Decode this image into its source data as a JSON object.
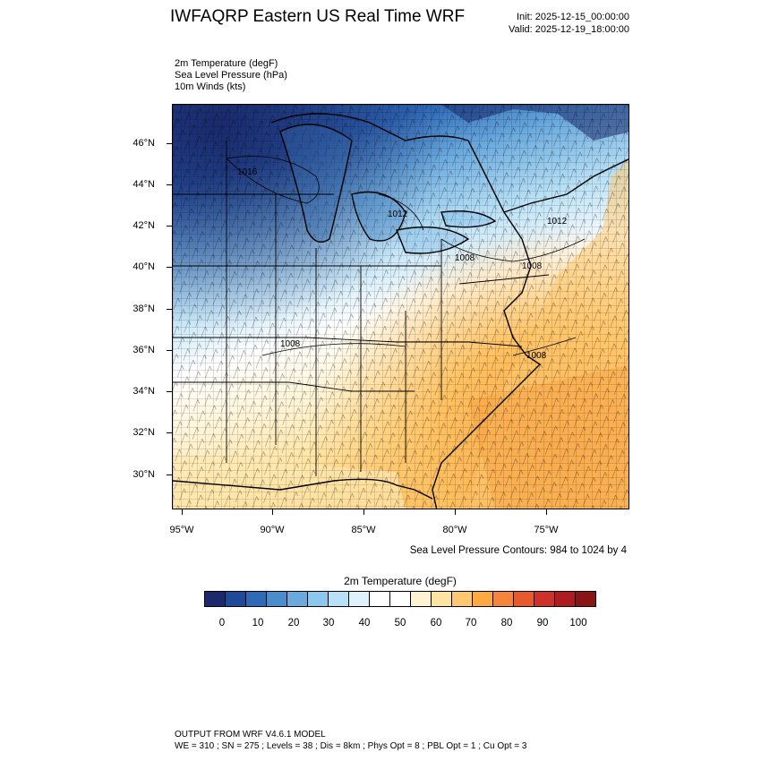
{
  "header": {
    "title": "IWFAQRP Eastern US Real Time WRF",
    "init": "Init: 2025-12-15_00:00:00",
    "valid": "Valid: 2025-12-19_18:00:00"
  },
  "fields": [
    "2m Temperature   (degF)",
    "Sea Level Pressure   (hPa)",
    "10m Winds   (kts)"
  ],
  "map": {
    "lat_labels": [
      "46°N",
      "44°N",
      "42°N",
      "40°N",
      "38°N",
      "36°N",
      "34°N",
      "32°N",
      "30°N"
    ],
    "lon_labels": [
      "95°W",
      "90°W",
      "85°W",
      "80°W",
      "75°W"
    ],
    "pressure_labels": [
      "1016",
      "1012",
      "1008",
      "1008",
      "1008",
      "1008",
      "1012"
    ],
    "contour_note": "Sea Level Pressure Contours: 984 to 1024 by 4"
  },
  "colorbar": {
    "title": "2m Temperature  (degF)",
    "colors": [
      "#1a2a6c",
      "#1f4a98",
      "#2f6ab8",
      "#4a8ccc",
      "#6aaade",
      "#8cc8ee",
      "#b8e0f6",
      "#def2fb",
      "#ffffff",
      "#ffffff",
      "#fff3d2",
      "#ffe3a0",
      "#ffc870",
      "#ffa945",
      "#f6843a",
      "#e85a2e",
      "#d0302a",
      "#b01b20",
      "#8b1414"
    ],
    "tick_labels": [
      "0",
      "10",
      "20",
      "30",
      "40",
      "50",
      "60",
      "70",
      "80",
      "90",
      "100"
    ]
  },
  "footer": {
    "model": "OUTPUT FROM WRF V4.6.1 MODEL",
    "config": "WE = 310 ; SN = 275 ; Levels = 38 ; Dis = 8km ; Phys Opt = 8 ; PBL Opt = 1 ; Cu Opt = 3"
  }
}
